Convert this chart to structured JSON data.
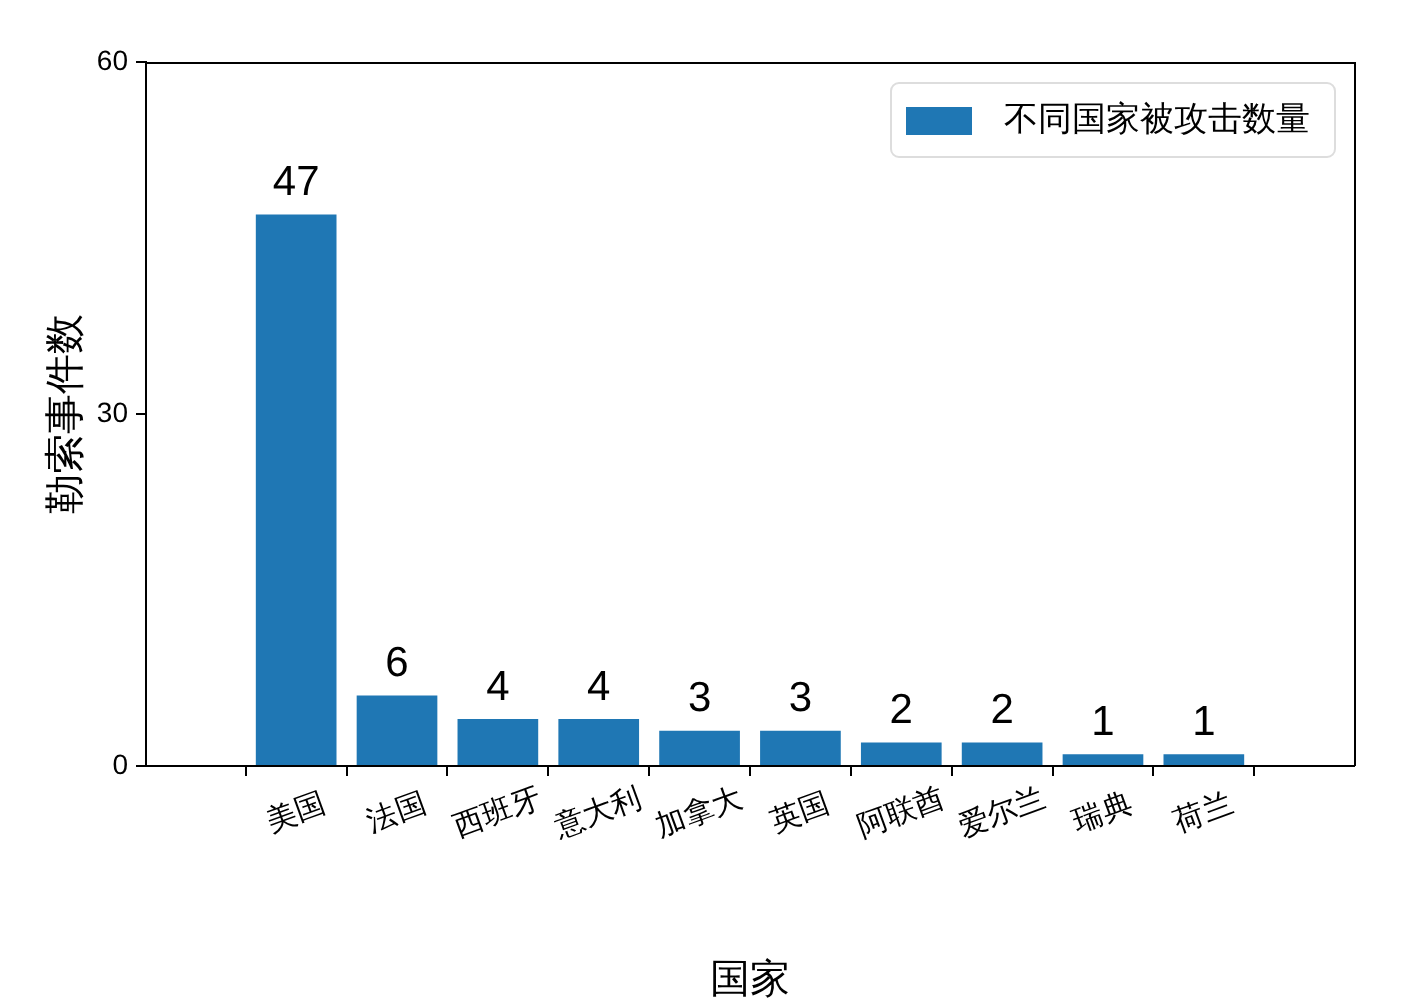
{
  "chart_data": {
    "type": "bar",
    "xlabel": "国家",
    "ylabel": "勒索事件数",
    "categories": [
      "美国",
      "法国",
      "西班牙",
      "意大利",
      "加拿大",
      "英国",
      "阿联酋",
      "爱尔兰",
      "瑞典",
      "荷兰"
    ],
    "series": [
      {
        "name": "不同国家被攻击数量",
        "color": "#1f77b4",
        "values": [
          47,
          6,
          4,
          4,
          3,
          3,
          2,
          2,
          1,
          1
        ]
      }
    ],
    "ylim": [
      0,
      60
    ],
    "yticks": [
      0,
      30,
      60
    ],
    "data_labels": true,
    "legend": "top right"
  }
}
